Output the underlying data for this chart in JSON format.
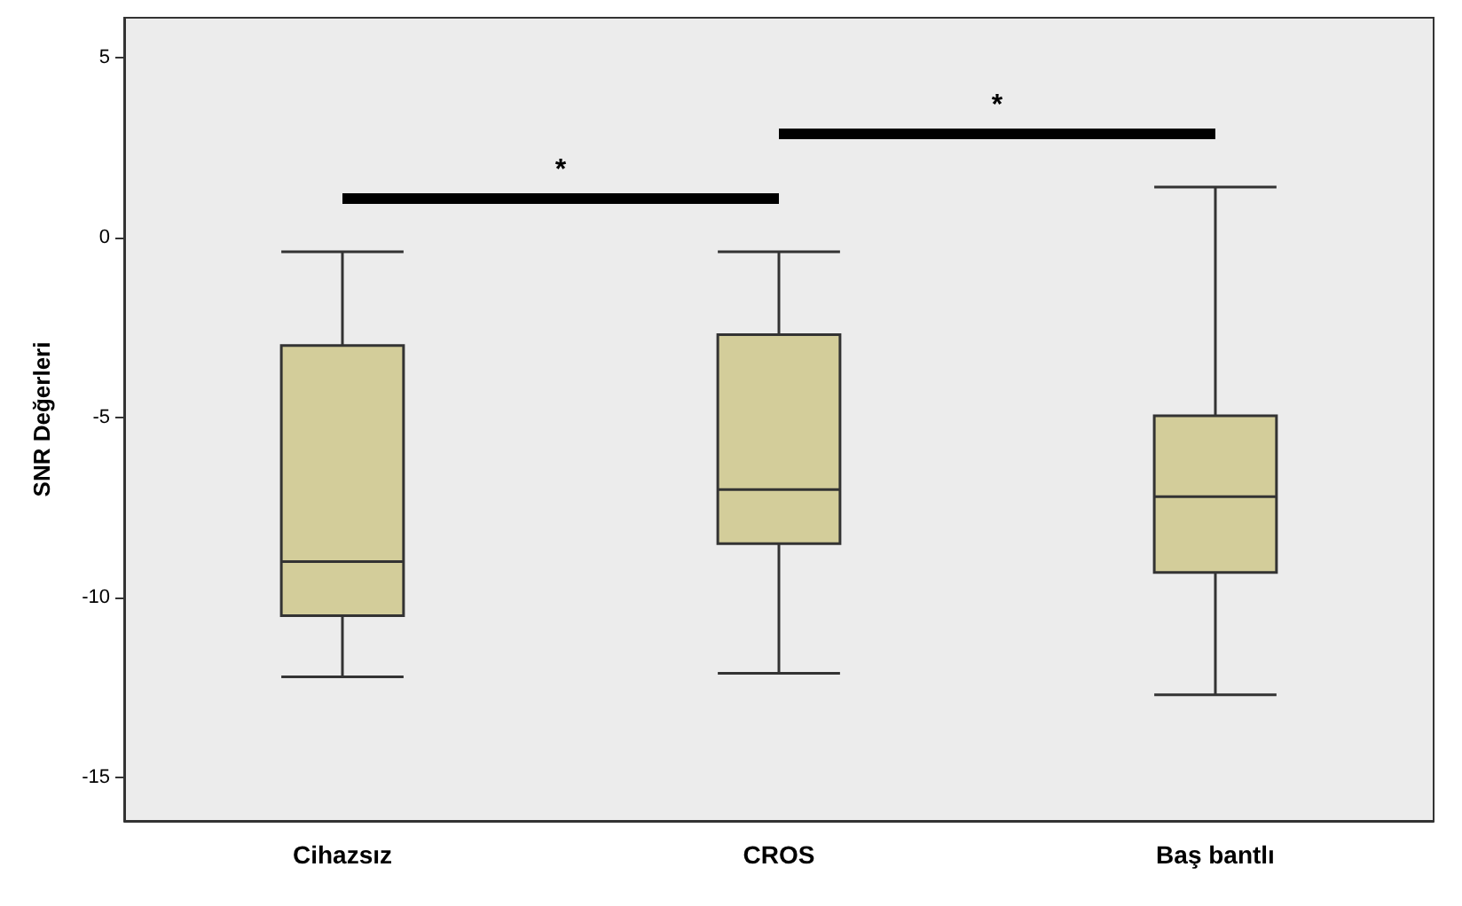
{
  "chart_data": {
    "type": "box",
    "ylabel": "SNR Değerleri",
    "categories": [
      "Cihazsız",
      "CROS",
      "Baş bantlı"
    ],
    "boxes": [
      {
        "low": -12.2,
        "q1": -10.5,
        "median": -9.0,
        "q3": -3.0,
        "high": -0.4
      },
      {
        "low": -12.1,
        "q1": -8.5,
        "median": -7.0,
        "q3": -2.7,
        "high": -0.4
      },
      {
        "low": -12.7,
        "q1": -9.3,
        "median": -7.2,
        "q3": -4.95,
        "high": 1.4
      }
    ],
    "color": "#d3cd9a",
    "ylim": [
      -16.2,
      6.1
    ],
    "yticks": [
      5,
      0,
      -5,
      -10,
      -15
    ],
    "grid": false,
    "annotations": [
      "*",
      "*"
    ]
  }
}
